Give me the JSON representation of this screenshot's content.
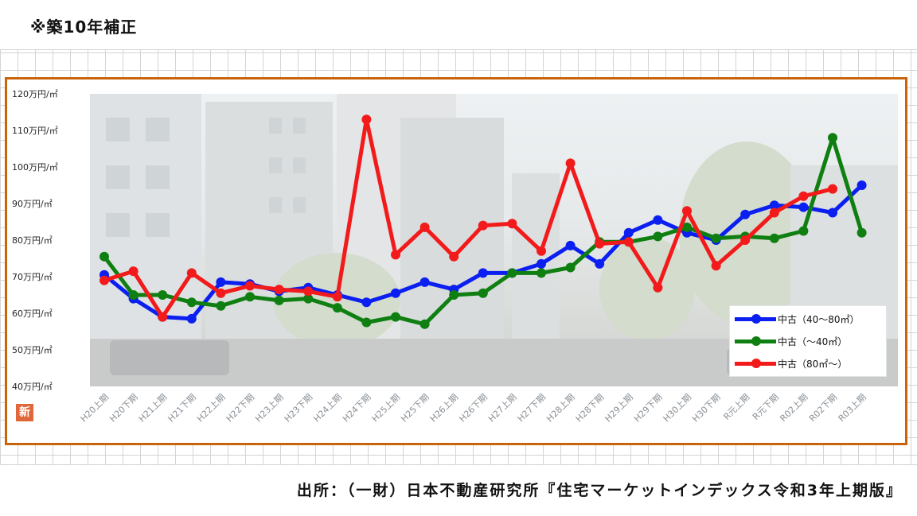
{
  "note": "※築10年補正",
  "source": "出所：（一財）日本不動産研究所『住宅マーケットインデックス令和3年上期版』",
  "logo": {
    "icon": "shin-logo-icon",
    "text": "新"
  },
  "colors": {
    "frame": "#c8650c",
    "blue": "#0a1ff0",
    "green": "#0e7f10",
    "red": "#f21a1a"
  },
  "chart_data": {
    "type": "line",
    "title": "",
    "xlabel": "",
    "ylabel": "",
    "ylim": [
      40,
      120
    ],
    "yticks": [
      {
        "value": 120,
        "label": "120万円/㎡"
      },
      {
        "value": 110,
        "label": "110万円/㎡"
      },
      {
        "value": 100,
        "label": "100万円/㎡"
      },
      {
        "value": 90,
        "label": "90万円/㎡"
      },
      {
        "value": 80,
        "label": "80万円/㎡"
      },
      {
        "value": 70,
        "label": "70万円/㎡"
      },
      {
        "value": 60,
        "label": "60万円/㎡"
      },
      {
        "value": 50,
        "label": "50万円/㎡"
      },
      {
        "value": 40,
        "label": "40万円/㎡"
      }
    ],
    "categories": [
      "H20上期",
      "H20下期",
      "H21上期",
      "H21下期",
      "H22上期",
      "H22下期",
      "H23上期",
      "H23下期",
      "H24上期",
      "H24下期",
      "H25上期",
      "H25下期",
      "H26上期",
      "H26下期",
      "H27上期",
      "H27下期",
      "H28上期",
      "H28下期",
      "H29上期",
      "H29下期",
      "H30上期",
      "H30下期",
      "R元上期",
      "R元下期",
      "R02上期",
      "R02下期",
      "R03上期"
    ],
    "grid": false,
    "legend_position": "bottom-right",
    "series": [
      {
        "name": "中古（40～80㎡）",
        "color": "#0a1ff0",
        "values": [
          70.5,
          64,
          59,
          58.5,
          68.5,
          68,
          66,
          67,
          65,
          63,
          65.5,
          68.5,
          66.5,
          71,
          71,
          73.5,
          78.5,
          73.5,
          82,
          85.5,
          82,
          80,
          87,
          89.5,
          89,
          87.5,
          95
        ]
      },
      {
        "name": "中古（～40㎡）",
        "color": "#0e7f10",
        "values": [
          75.5,
          65,
          65,
          63,
          62,
          64.5,
          63.5,
          64,
          61.5,
          57.5,
          59,
          57,
          65,
          65.5,
          71,
          71,
          72.5,
          79.5,
          79.5,
          81,
          83.5,
          80.5,
          81,
          80.5,
          82.5,
          108,
          82
        ]
      },
      {
        "name": "中古（80㎡～）",
        "color": "#f21a1a",
        "values": [
          69,
          71.5,
          59,
          71,
          65.5,
          67.5,
          66.5,
          66,
          64.5,
          113,
          76,
          83.5,
          75.5,
          84,
          84.5,
          77,
          101,
          79,
          79.5,
          67,
          88,
          73,
          80,
          87.5,
          92,
          94,
          null
        ]
      }
    ]
  }
}
